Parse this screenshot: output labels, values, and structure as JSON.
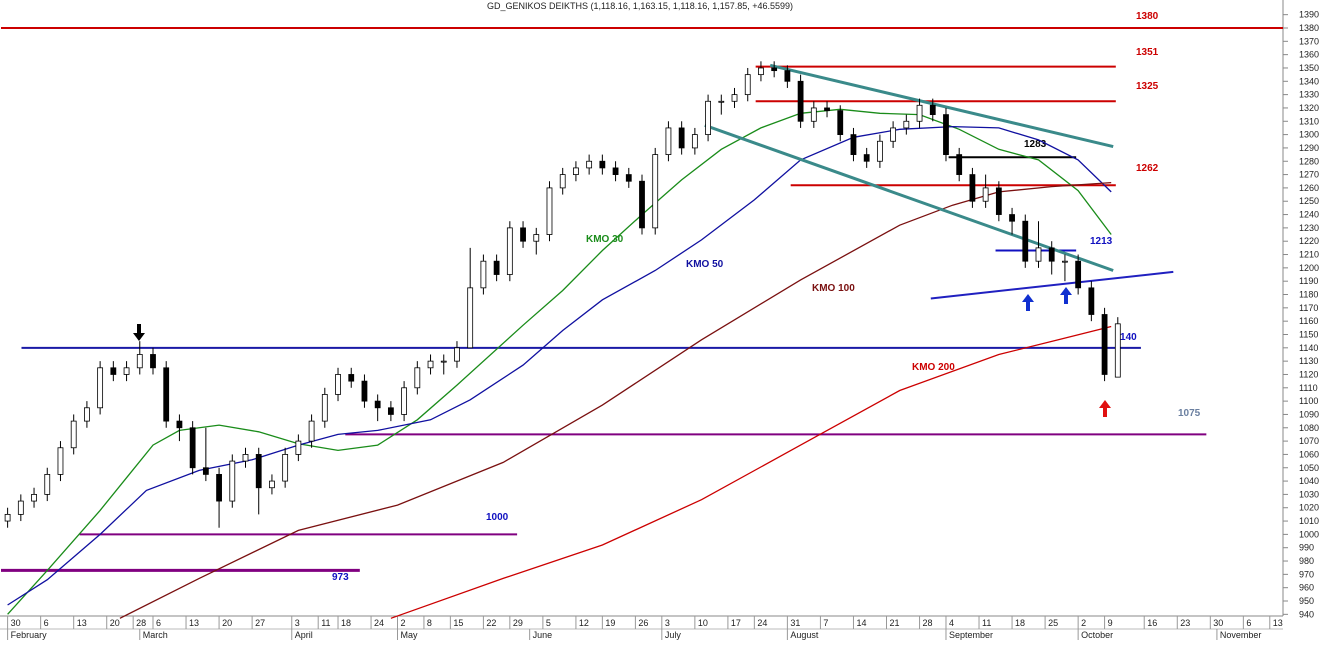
{
  "chart_data": {
    "type": "candlestick",
    "title": "GD_GENIKOS DEIKTHS (1,118.16, 1,163.15, 1,118.16, 1,157.85, +46.5599)",
    "ylim": [
      935,
      1395
    ],
    "xlim": [
      -1,
      193
    ],
    "yticks": [
      940,
      950,
      960,
      970,
      980,
      990,
      1000,
      1010,
      1020,
      1030,
      1040,
      1050,
      1060,
      1070,
      1080,
      1090,
      1100,
      1110,
      1120,
      1130,
      1140,
      1150,
      1160,
      1170,
      1180,
      1190,
      1200,
      1210,
      1220,
      1230,
      1240,
      1250,
      1260,
      1270,
      1280,
      1290,
      1300,
      1310,
      1320,
      1330,
      1340,
      1350,
      1360,
      1370,
      1380,
      1390
    ],
    "xticks": [
      {
        "value": 0,
        "label": "30"
      },
      {
        "value": 5,
        "label": "6"
      },
      {
        "value": 10,
        "label": "13"
      },
      {
        "value": 15,
        "label": "20"
      },
      {
        "value": 19,
        "label": "28"
      },
      {
        "value": 22,
        "label": "6"
      },
      {
        "value": 27,
        "label": "13"
      },
      {
        "value": 32,
        "label": "20"
      },
      {
        "value": 37,
        "label": "27"
      },
      {
        "value": 43,
        "label": "3"
      },
      {
        "value": 47,
        "label": "11"
      },
      {
        "value": 50,
        "label": "18"
      },
      {
        "value": 55,
        "label": "24"
      },
      {
        "value": 59,
        "label": "2"
      },
      {
        "value": 63,
        "label": "8"
      },
      {
        "value": 67,
        "label": "15"
      },
      {
        "value": 72,
        "label": "22"
      },
      {
        "value": 76,
        "label": "29"
      },
      {
        "value": 81,
        "label": "5"
      },
      {
        "value": 86,
        "label": "12"
      },
      {
        "value": 90,
        "label": "19"
      },
      {
        "value": 95,
        "label": "26"
      },
      {
        "value": 99,
        "label": "3"
      },
      {
        "value": 104,
        "label": "10"
      },
      {
        "value": 109,
        "label": "17"
      },
      {
        "value": 113,
        "label": "24"
      },
      {
        "value": 118,
        "label": "31"
      },
      {
        "value": 123,
        "label": "7"
      },
      {
        "value": 128,
        "label": "14"
      },
      {
        "value": 133,
        "label": "21"
      },
      {
        "value": 138,
        "label": "28"
      },
      {
        "value": 142,
        "label": "4"
      },
      {
        "value": 147,
        "label": "11"
      },
      {
        "value": 152,
        "label": "18"
      },
      {
        "value": 157,
        "label": "25"
      },
      {
        "value": 162,
        "label": "2"
      },
      {
        "value": 166,
        "label": "9"
      },
      {
        "value": 172,
        "label": "16"
      },
      {
        "value": 177,
        "label": "23"
      },
      {
        "value": 182,
        "label": "30"
      },
      {
        "value": 187,
        "label": "6"
      },
      {
        "value": 191,
        "label": "13"
      }
    ],
    "months": [
      {
        "value": 0,
        "label": "February"
      },
      {
        "value": 20,
        "label": "March"
      },
      {
        "value": 43,
        "label": "April"
      },
      {
        "value": 59,
        "label": "May"
      },
      {
        "value": 79,
        "label": "June"
      },
      {
        "value": 99,
        "label": "July"
      },
      {
        "value": 118,
        "label": "August"
      },
      {
        "value": 142,
        "label": "September"
      },
      {
        "value": 162,
        "label": "October"
      },
      {
        "value": 183,
        "label": "November"
      }
    ],
    "candles": {
      "x": [
        0,
        2,
        4,
        6,
        8,
        10,
        12,
        14,
        16,
        18,
        20,
        22,
        24,
        26,
        28,
        30,
        32,
        34,
        36,
        38,
        40,
        42,
        44,
        46,
        48,
        50,
        52,
        54,
        56,
        58,
        60,
        62,
        64,
        66,
        68,
        70,
        72,
        74,
        76,
        78,
        80,
        82,
        84,
        86,
        88,
        90,
        92,
        94,
        96,
        98,
        100,
        102,
        104,
        106,
        108,
        110,
        112,
        114,
        116,
        118,
        120,
        122,
        124,
        126,
        128,
        130,
        132,
        134,
        136,
        138,
        140,
        142,
        144,
        146,
        148,
        150,
        152,
        154,
        156,
        158,
        160,
        162,
        164,
        166,
        168
      ],
      "open": [
        1010,
        1015,
        1025,
        1030,
        1045,
        1065,
        1085,
        1095,
        1125,
        1120,
        1125,
        1135,
        1125,
        1085,
        1080,
        1050,
        1045,
        1025,
        1055,
        1060,
        1035,
        1040,
        1060,
        1070,
        1085,
        1105,
        1120,
        1115,
        1100,
        1095,
        1090,
        1110,
        1125,
        1130,
        1130,
        1140,
        1185,
        1205,
        1195,
        1230,
        1220,
        1225,
        1260,
        1270,
        1275,
        1280,
        1275,
        1270,
        1265,
        1230,
        1285,
        1305,
        1290,
        1300,
        1325,
        1325,
        1330,
        1345,
        1350,
        1348,
        1340,
        1310,
        1320,
        1318,
        1300,
        1285,
        1280,
        1295,
        1305,
        1310,
        1322,
        1315,
        1285,
        1270,
        1250,
        1260,
        1240,
        1235,
        1205,
        1215,
        1205,
        1205,
        1185,
        1165,
        1118
      ],
      "high": [
        1020,
        1030,
        1035,
        1050,
        1070,
        1090,
        1100,
        1130,
        1130,
        1130,
        1145,
        1140,
        1130,
        1090,
        1085,
        1080,
        1050,
        1060,
        1065,
        1065,
        1045,
        1065,
        1075,
        1090,
        1110,
        1125,
        1125,
        1120,
        1105,
        1100,
        1115,
        1130,
        1135,
        1135,
        1145,
        1215,
        1210,
        1210,
        1235,
        1235,
        1230,
        1265,
        1275,
        1280,
        1285,
        1285,
        1280,
        1275,
        1270,
        1290,
        1310,
        1310,
        1305,
        1330,
        1330,
        1335,
        1350,
        1355,
        1355,
        1352,
        1345,
        1325,
        1325,
        1322,
        1305,
        1290,
        1300,
        1310,
        1315,
        1327,
        1327,
        1320,
        1290,
        1275,
        1270,
        1265,
        1245,
        1240,
        1235,
        1220,
        1210,
        1210,
        1190,
        1170,
        1163
      ],
      "low": [
        1005,
        1010,
        1020,
        1025,
        1040,
        1060,
        1080,
        1090,
        1115,
        1115,
        1120,
        1120,
        1080,
        1070,
        1045,
        1040,
        1005,
        1020,
        1050,
        1015,
        1030,
        1035,
        1055,
        1065,
        1080,
        1100,
        1110,
        1095,
        1085,
        1085,
        1085,
        1105,
        1120,
        1120,
        1125,
        1140,
        1180,
        1190,
        1190,
        1215,
        1210,
        1220,
        1255,
        1265,
        1270,
        1270,
        1265,
        1260,
        1225,
        1225,
        1280,
        1285,
        1285,
        1295,
        1315,
        1320,
        1325,
        1340,
        1343,
        1335,
        1305,
        1305,
        1313,
        1295,
        1280,
        1275,
        1275,
        1290,
        1300,
        1305,
        1310,
        1280,
        1265,
        1245,
        1245,
        1235,
        1225,
        1200,
        1200,
        1195,
        1190,
        1180,
        1160,
        1115,
        1118
      ],
      "close": [
        1015,
        1025,
        1030,
        1045,
        1065,
        1085,
        1095,
        1125,
        1120,
        1125,
        1135,
        1125,
        1085,
        1080,
        1050,
        1045,
        1025,
        1055,
        1060,
        1035,
        1040,
        1060,
        1070,
        1085,
        1105,
        1120,
        1115,
        1100,
        1095,
        1090,
        1110,
        1125,
        1130,
        1130,
        1140,
        1185,
        1205,
        1195,
        1230,
        1220,
        1225,
        1260,
        1270,
        1275,
        1280,
        1275,
        1270,
        1265,
        1230,
        1285,
        1305,
        1290,
        1300,
        1325,
        1325,
        1330,
        1345,
        1350,
        1348,
        1340,
        1310,
        1320,
        1318,
        1300,
        1285,
        1280,
        1295,
        1305,
        1310,
        1322,
        1315,
        1285,
        1270,
        1250,
        1260,
        1240,
        1235,
        1205,
        1215,
        1205,
        1205,
        1185,
        1165,
        1120,
        1158
      ],
      "up_color": "#ffffff",
      "down_color": "#000000"
    },
    "series": [
      {
        "name": "KMO 30",
        "color": "#1a8c1a",
        "x": [
          0,
          6,
          14,
          22,
          26,
          32,
          38,
          44,
          50,
          56,
          62,
          68,
          78,
          84,
          90,
          96,
          102,
          108,
          114,
          120,
          126,
          132,
          138,
          144,
          150,
          156,
          162,
          167
        ],
        "values": [
          940,
          973,
          1018,
          1067,
          1078,
          1082,
          1077,
          1068,
          1063,
          1067,
          1086,
          1112,
          1157,
          1183,
          1213,
          1240,
          1266,
          1289,
          1305,
          1316,
          1319,
          1316,
          1315,
          1304,
          1289,
          1281,
          1258,
          1225
        ]
      },
      {
        "name": "KMO 50",
        "color": "#1010a0",
        "x": [
          0,
          6,
          14,
          21,
          29,
          37,
          44,
          50,
          56,
          64,
          70,
          78,
          84,
          90,
          98,
          105,
          113,
          120,
          128,
          135,
          143,
          150,
          156,
          162,
          167
        ],
        "values": [
          947,
          966,
          1000,
          1033,
          1048,
          1056,
          1067,
          1075,
          1078,
          1086,
          1101,
          1127,
          1153,
          1176,
          1198,
          1221,
          1251,
          1281,
          1298,
          1304,
          1306,
          1305,
          1296,
          1281,
          1257
        ]
      },
      {
        "name": "KMO 100",
        "color": "#7a1010",
        "x": [
          17,
          29,
          44,
          59,
          75,
          90,
          105,
          120,
          135,
          143,
          150,
          158,
          167
        ],
        "values": [
          937,
          967,
          1003,
          1022,
          1054,
          1097,
          1146,
          1191,
          1232,
          1247,
          1257,
          1261,
          1264
        ]
      },
      {
        "name": "KMO 200",
        "color": "#cc0000",
        "x": [
          58,
          75,
          90,
          105,
          120,
          135,
          150,
          159,
          167
        ],
        "values": [
          937,
          967,
          992,
          1026,
          1067,
          1108,
          1135,
          1146,
          1156
        ]
      }
    ],
    "levels": [
      {
        "value": 1380,
        "x": [
          -1,
          193
        ],
        "color": "#cc0000",
        "label_color": "#cc0000"
      },
      {
        "value": 1351,
        "x": [
          113.2,
          167.7
        ],
        "color": "#cc0000",
        "label_color": "#cc0000"
      },
      {
        "value": 1325,
        "x": [
          113.2,
          167.7
        ],
        "color": "#cc0000",
        "label_color": "#cc0000"
      },
      {
        "value": 1262,
        "x": [
          118.5,
          167.7
        ],
        "color": "#cc0000",
        "label_color": "#cc0000"
      },
      {
        "value": 1283,
        "x": [
          142.4,
          161.7
        ],
        "color": "#000000",
        "label_color": "#000000"
      },
      {
        "value": 1213,
        "x": [
          149.5,
          161.7
        ],
        "color": "#1010c0",
        "label_color": "#1010c0"
      },
      {
        "value": 1140,
        "x": [
          2.1,
          171.5
        ],
        "color": "#1a1aa6",
        "label_color": "#1010c0"
      },
      {
        "value": 1075,
        "x": [
          51.1,
          181.4
        ],
        "color": "#800080",
        "label_color": "#6a7fa0"
      },
      {
        "value": 1000,
        "x": [
          10.9,
          77.1
        ],
        "color": "#800080",
        "label_color": "#1010c0"
      },
      {
        "value": 973,
        "x": [
          -1,
          53.3
        ],
        "color": "#800080",
        "label_color": "#1010c0"
      }
    ],
    "trendlines": [
      {
        "x": [
          115.4,
          167.3
        ],
        "values": [
          1352,
          1291
        ],
        "color": "#3a8a8a"
      },
      {
        "x": [
          105.5,
          167.3
        ],
        "values": [
          1307,
          1198
        ],
        "color": "#3a8a8a"
      },
      {
        "x": [
          139.7,
          176.4
        ],
        "values": [
          1177,
          1197
        ],
        "color": "#2020c0"
      }
    ]
  }
}
